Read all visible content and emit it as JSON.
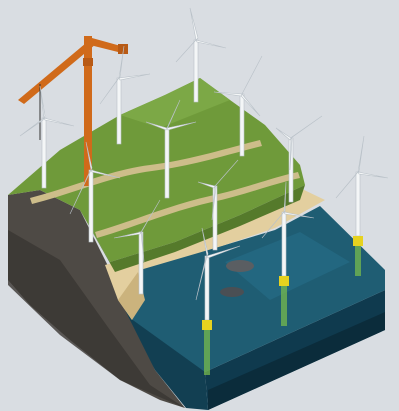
{
  "scene": {
    "subject": "isometric-wind-farm",
    "colors": {
      "background": "#d9dde2",
      "grass_top": "#6f9a3a",
      "grass_dark": "#557a2b",
      "sand": "#e3cf9f",
      "road": "#cdbd8a",
      "rock": "#4e4a45",
      "rock_dark": "#3a3632",
      "sea_surface": "#1f5d73",
      "sea_side": "#0f3a4e",
      "turbine": "#f4f6f7",
      "turbine_shade": "#b9c1c8",
      "buoy_yellow": "#e6d21f",
      "buoy_green": "#7cc04a",
      "crane_orange": "#d06a1a"
    }
  }
}
